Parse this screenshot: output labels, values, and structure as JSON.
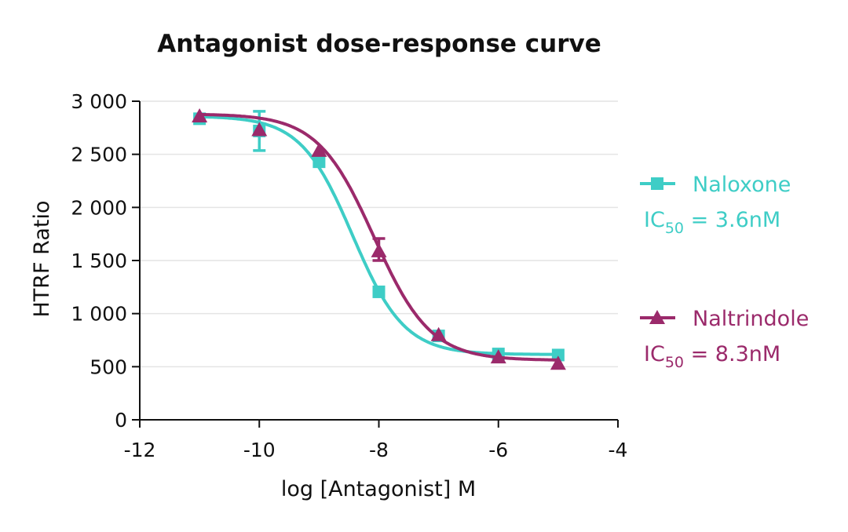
{
  "chart_data": {
    "type": "scatter",
    "title": "Antagonist dose-response curve",
    "xlabel": "log [Antagonist] M",
    "ylabel": "HTRF Ratio",
    "xlim": [
      -12,
      -4
    ],
    "ylim": [
      0,
      3000
    ],
    "xticks": [
      -12,
      -10,
      -8,
      -6,
      -4
    ],
    "xtick_labels": [
      "-12",
      "-10",
      "-8",
      "-6",
      "-4"
    ],
    "yticks": [
      0,
      500,
      1000,
      1500,
      2000,
      2500,
      3000
    ],
    "ytick_labels": [
      "0",
      "500",
      "1 000",
      "1 500",
      "2 000",
      "2 500",
      "3 000"
    ],
    "grid": "horizontal",
    "legend_placement": "right",
    "series": [
      {
        "name": "Naloxone",
        "marker": "square",
        "color": "#3ECDC6",
        "x": [
          -11,
          -10,
          -9,
          -8,
          -7,
          -6,
          -5
        ],
        "y": [
          2835,
          2720,
          2430,
          1205,
          790,
          620,
          610
        ],
        "error": [
          [
            -10,
            2535,
            2905
          ]
        ],
        "fit": {
          "top": 2860,
          "bottom": 615,
          "logIC50": -8.44,
          "hill": 1.0
        },
        "annotation": {
          "prefix": "IC",
          "sub": "50",
          "suffix": " = 3.6nM"
        }
      },
      {
        "name": "Naltrindole",
        "marker": "triangle",
        "color": "#9B2A6B",
        "x": [
          -11,
          -10,
          -9,
          -8,
          -7,
          -6,
          -5
        ],
        "y": [
          2860,
          2730,
          2535,
          1590,
          800,
          590,
          530
        ],
        "error": [
          [
            -8,
            1500,
            1707
          ]
        ],
        "fit": {
          "top": 2880,
          "bottom": 560,
          "logIC50": -8.08,
          "hill": 0.92
        },
        "annotation": {
          "prefix": "IC",
          "sub": "50",
          "suffix": " = 8.3nM"
        }
      }
    ]
  }
}
